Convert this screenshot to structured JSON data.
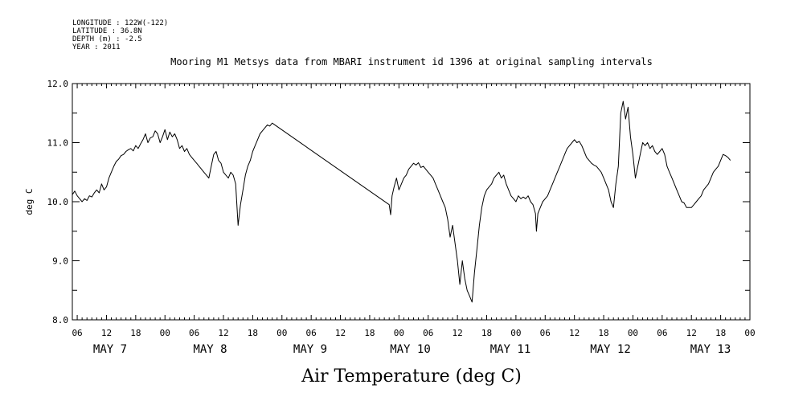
{
  "header": {
    "lines": [
      "LONGITUDE : 122W(-122)",
      "LATITUDE : 36.8N",
      "DEPTH (m) : -2.5",
      "YEAR : 2011"
    ]
  },
  "chart_data": {
    "type": "line",
    "title": "Mooring M1 Metsys data from MBARI instrument id 1396 at original sampling intervals",
    "xlabel": "Air Temperature (deg C)",
    "ylabel": "deg C",
    "ylim": [
      8.0,
      12.0
    ],
    "yticks": [
      8.0,
      9.0,
      10.0,
      11.0,
      12.0
    ],
    "ytick_labels": [
      "8.0",
      "9.0",
      "10.0",
      "11.0",
      "12.0"
    ],
    "x_units": "hours since 2011-05-06 00:00",
    "xlim": [
      5,
      144
    ],
    "xtick_hours": [
      6,
      12,
      18,
      24,
      30,
      36,
      42,
      48,
      54,
      60,
      66,
      72,
      78,
      84,
      90,
      96,
      102,
      108,
      114,
      120,
      126,
      132,
      138,
      144
    ],
    "xtick_labels": [
      "06",
      "12",
      "18",
      "00",
      "06",
      "12",
      "18",
      "00",
      "06",
      "12",
      "18",
      "00",
      "06",
      "12",
      "18",
      "00",
      "06",
      "12",
      "18",
      "00",
      "06",
      "12",
      "18",
      "00"
    ],
    "day_labels": [
      {
        "label": "MAY  7",
        "hour": 36
      },
      {
        "label": "MAY  8",
        "hour": 56
      },
      {
        "label": "MAY  9",
        "hour": 76
      },
      {
        "label": "MAY 10",
        "hour": 96
      },
      {
        "label": "MAY 11",
        "hour": 116
      },
      {
        "label": "MAY 12",
        "hour": 136
      },
      {
        "label": "MAY 13",
        "hour": 156
      }
    ],
    "grid": false,
    "series": [
      {
        "color": "#000000",
        "points": [
          [
            5.0,
            10.12
          ],
          [
            5.5,
            10.18
          ],
          [
            6.0,
            10.1
          ],
          [
            6.5,
            10.05
          ],
          [
            7.0,
            10.0
          ],
          [
            7.5,
            10.05
          ],
          [
            8.0,
            10.02
          ],
          [
            8.5,
            10.1
          ],
          [
            9.0,
            10.08
          ],
          [
            9.5,
            10.15
          ],
          [
            10.0,
            10.2
          ],
          [
            10.5,
            10.15
          ],
          [
            11.0,
            10.3
          ],
          [
            11.5,
            10.2
          ],
          [
            12.0,
            10.25
          ],
          [
            12.5,
            10.4
          ],
          [
            13.0,
            10.5
          ],
          [
            13.5,
            10.6
          ],
          [
            14.0,
            10.68
          ],
          [
            14.5,
            10.72
          ],
          [
            15.0,
            10.78
          ],
          [
            15.5,
            10.8
          ],
          [
            16.0,
            10.85
          ],
          [
            16.5,
            10.88
          ],
          [
            17.0,
            10.9
          ],
          [
            17.5,
            10.86
          ],
          [
            18.0,
            10.95
          ],
          [
            18.5,
            10.9
          ],
          [
            19.0,
            10.98
          ],
          [
            19.5,
            11.05
          ],
          [
            20.0,
            11.15
          ],
          [
            20.5,
            11.0
          ],
          [
            21.0,
            11.08
          ],
          [
            21.5,
            11.1
          ],
          [
            22.0,
            11.2
          ],
          [
            22.5,
            11.15
          ],
          [
            23.0,
            11.0
          ],
          [
            23.5,
            11.1
          ],
          [
            24.0,
            11.22
          ],
          [
            24.5,
            11.05
          ],
          [
            25.0,
            11.18
          ],
          [
            25.5,
            11.1
          ],
          [
            26.0,
            11.15
          ],
          [
            26.5,
            11.05
          ],
          [
            27.0,
            10.9
          ],
          [
            27.5,
            10.95
          ],
          [
            28.0,
            10.85
          ],
          [
            28.5,
            10.9
          ],
          [
            29.0,
            10.8
          ],
          [
            29.5,
            10.75
          ],
          [
            30.0,
            10.7
          ],
          [
            30.5,
            10.65
          ],
          [
            31.0,
            10.6
          ],
          [
            31.5,
            10.55
          ],
          [
            32.0,
            10.5
          ],
          [
            32.5,
            10.45
          ],
          [
            33.0,
            10.4
          ],
          [
            33.5,
            10.6
          ],
          [
            34.0,
            10.8
          ],
          [
            34.5,
            10.85
          ],
          [
            35.0,
            10.7
          ],
          [
            35.5,
            10.65
          ],
          [
            36.0,
            10.5
          ],
          [
            36.5,
            10.45
          ],
          [
            37.0,
            10.4
          ],
          [
            37.5,
            10.5
          ],
          [
            38.0,
            10.45
          ],
          [
            38.5,
            10.3
          ],
          [
            39.0,
            9.6
          ],
          [
            39.5,
            9.95
          ],
          [
            40.0,
            10.2
          ],
          [
            40.5,
            10.45
          ],
          [
            41.0,
            10.6
          ],
          [
            41.5,
            10.7
          ],
          [
            42.0,
            10.85
          ],
          [
            42.5,
            10.95
          ],
          [
            43.0,
            11.05
          ],
          [
            43.5,
            11.15
          ],
          [
            44.0,
            11.2
          ],
          [
            44.5,
            11.25
          ],
          [
            45.0,
            11.3
          ],
          [
            45.5,
            11.28
          ],
          [
            46.0,
            11.33
          ],
          [
            70.0,
            9.95
          ],
          [
            70.3,
            9.78
          ],
          [
            70.6,
            10.1
          ],
          [
            71.0,
            10.25
          ],
          [
            71.5,
            10.4
          ],
          [
            72.0,
            10.2
          ],
          [
            72.5,
            10.3
          ],
          [
            73.0,
            10.4
          ],
          [
            73.5,
            10.45
          ],
          [
            74.0,
            10.55
          ],
          [
            74.5,
            10.6
          ],
          [
            75.0,
            10.65
          ],
          [
            75.5,
            10.62
          ],
          [
            76.0,
            10.66
          ],
          [
            76.5,
            10.58
          ],
          [
            77.0,
            10.6
          ],
          [
            77.5,
            10.55
          ],
          [
            78.0,
            10.5
          ],
          [
            78.5,
            10.45
          ],
          [
            79.0,
            10.4
          ],
          [
            79.5,
            10.3
          ],
          [
            80.0,
            10.2
          ],
          [
            80.5,
            10.1
          ],
          [
            81.0,
            10.0
          ],
          [
            81.5,
            9.9
          ],
          [
            82.0,
            9.7
          ],
          [
            82.5,
            9.4
          ],
          [
            83.0,
            9.6
          ],
          [
            83.5,
            9.3
          ],
          [
            84.0,
            9.0
          ],
          [
            84.5,
            8.6
          ],
          [
            85.0,
            9.0
          ],
          [
            85.5,
            8.7
          ],
          [
            86.0,
            8.5
          ],
          [
            86.5,
            8.4
          ],
          [
            87.0,
            8.3
          ],
          [
            87.5,
            8.8
          ],
          [
            88.0,
            9.2
          ],
          [
            88.5,
            9.6
          ],
          [
            89.0,
            9.9
          ],
          [
            89.5,
            10.1
          ],
          [
            90.0,
            10.2
          ],
          [
            90.5,
            10.25
          ],
          [
            91.0,
            10.3
          ],
          [
            91.5,
            10.4
          ],
          [
            92.0,
            10.45
          ],
          [
            92.5,
            10.5
          ],
          [
            93.0,
            10.4
          ],
          [
            93.5,
            10.45
          ],
          [
            94.0,
            10.3
          ],
          [
            94.5,
            10.2
          ],
          [
            95.0,
            10.1
          ],
          [
            95.5,
            10.05
          ],
          [
            96.0,
            10.0
          ],
          [
            96.5,
            10.1
          ],
          [
            97.0,
            10.05
          ],
          [
            97.5,
            10.08
          ],
          [
            98.0,
            10.05
          ],
          [
            98.5,
            10.1
          ],
          [
            99.0,
            10.0
          ],
          [
            99.5,
            9.95
          ],
          [
            100.0,
            9.8
          ],
          [
            100.2,
            9.5
          ],
          [
            100.5,
            9.8
          ],
          [
            101.0,
            9.9
          ],
          [
            101.5,
            10.0
          ],
          [
            102.0,
            10.05
          ],
          [
            102.5,
            10.1
          ],
          [
            103.0,
            10.2
          ],
          [
            103.5,
            10.3
          ],
          [
            104.0,
            10.4
          ],
          [
            104.5,
            10.5
          ],
          [
            105.0,
            10.6
          ],
          [
            105.5,
            10.7
          ],
          [
            106.0,
            10.8
          ],
          [
            106.5,
            10.9
          ],
          [
            107.0,
            10.95
          ],
          [
            107.5,
            11.0
          ],
          [
            108.0,
            11.05
          ],
          [
            108.5,
            11.0
          ],
          [
            109.0,
            11.02
          ],
          [
            109.5,
            10.95
          ],
          [
            110.0,
            10.85
          ],
          [
            110.5,
            10.75
          ],
          [
            111.0,
            10.7
          ],
          [
            111.5,
            10.65
          ],
          [
            112.0,
            10.62
          ],
          [
            112.5,
            10.6
          ],
          [
            113.0,
            10.55
          ],
          [
            113.5,
            10.5
          ],
          [
            114.0,
            10.4
          ],
          [
            114.5,
            10.3
          ],
          [
            115.0,
            10.2
          ],
          [
            115.5,
            10.0
          ],
          [
            116.0,
            9.9
          ],
          [
            116.5,
            10.3
          ],
          [
            117.0,
            10.6
          ],
          [
            117.5,
            11.5
          ],
          [
            118.0,
            11.7
          ],
          [
            118.5,
            11.4
          ],
          [
            119.0,
            11.6
          ],
          [
            119.5,
            11.1
          ],
          [
            120.0,
            10.8
          ],
          [
            120.5,
            10.4
          ],
          [
            121.0,
            10.6
          ],
          [
            121.5,
            10.8
          ],
          [
            122.0,
            11.0
          ],
          [
            122.5,
            10.95
          ],
          [
            123.0,
            11.0
          ],
          [
            123.5,
            10.9
          ],
          [
            124.0,
            10.95
          ],
          [
            124.5,
            10.85
          ],
          [
            125.0,
            10.8
          ],
          [
            125.5,
            10.85
          ],
          [
            126.0,
            10.9
          ],
          [
            126.5,
            10.8
          ],
          [
            127.0,
            10.6
          ],
          [
            127.5,
            10.5
          ],
          [
            128.0,
            10.4
          ],
          [
            128.5,
            10.3
          ],
          [
            129.0,
            10.2
          ],
          [
            129.5,
            10.1
          ],
          [
            130.0,
            10.0
          ],
          [
            130.5,
            9.98
          ],
          [
            131.0,
            9.9
          ],
          [
            131.5,
            9.9
          ],
          [
            132.0,
            9.9
          ],
          [
            132.5,
            9.95
          ],
          [
            133.0,
            10.0
          ],
          [
            133.5,
            10.05
          ],
          [
            134.0,
            10.1
          ],
          [
            134.5,
            10.2
          ],
          [
            135.0,
            10.25
          ],
          [
            135.5,
            10.3
          ],
          [
            136.0,
            10.4
          ],
          [
            136.5,
            10.5
          ],
          [
            137.0,
            10.55
          ],
          [
            137.5,
            10.6
          ],
          [
            138.0,
            10.7
          ],
          [
            138.5,
            10.8
          ],
          [
            139.0,
            10.78
          ],
          [
            139.5,
            10.75
          ],
          [
            140.0,
            10.7
          ]
        ]
      }
    ]
  }
}
